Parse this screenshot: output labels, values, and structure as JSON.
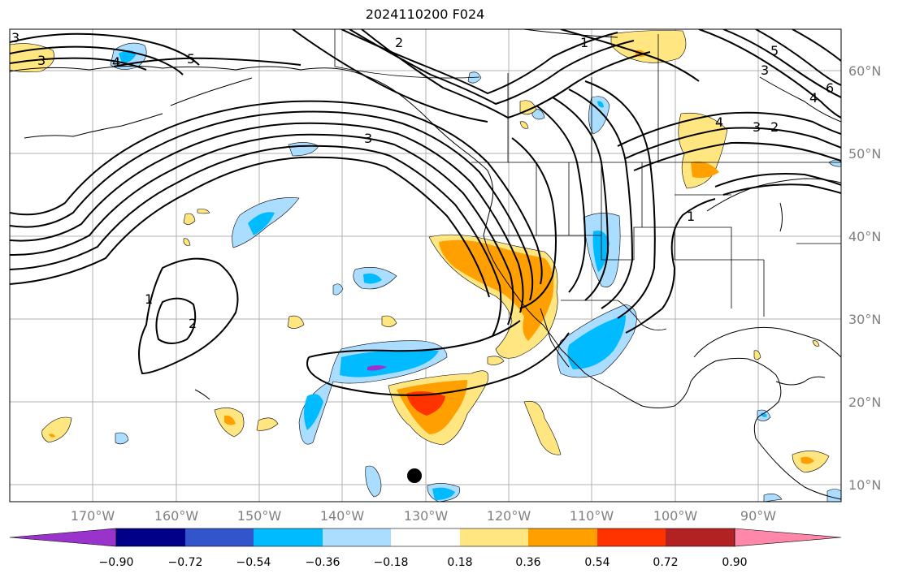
{
  "title": "2024110200 F024",
  "map": {
    "lat_labels": [
      "60°N",
      "50°N",
      "40°N",
      "30°N",
      "20°N",
      "10°N"
    ],
    "lon_labels": [
      "170°W",
      "160°W",
      "150°W",
      "140°W",
      "130°W",
      "120°W",
      "110°W",
      "100°W",
      "90°W"
    ],
    "contour_labels": [
      "3",
      "3",
      "4",
      "5",
      "2",
      "1",
      "3",
      "5",
      "3",
      "6",
      "4",
      "4",
      "3",
      "2",
      "1",
      "1",
      "2"
    ]
  },
  "colorbar": {
    "tick_labels": [
      "−0.90",
      "−0.72",
      "−0.54",
      "−0.36",
      "−0.18",
      "0.18",
      "0.36",
      "0.54",
      "0.72",
      "0.90"
    ],
    "colors": [
      "#9933cc",
      "#000088",
      "#3355cc",
      "#00bbff",
      "#aaddff",
      "#ffffff",
      "#ffe680",
      "#ffa000",
      "#ff3300",
      "#b22222",
      "#ff88aa"
    ]
  },
  "colors": {
    "pos_light": "#ffe680",
    "pos_mid": "#ffa000",
    "pos_strong": "#ff3300",
    "neg_light": "#aaddff",
    "neg_mid": "#00bbff",
    "neg_strong": "#3355cc",
    "neg_purple": "#9933cc"
  }
}
